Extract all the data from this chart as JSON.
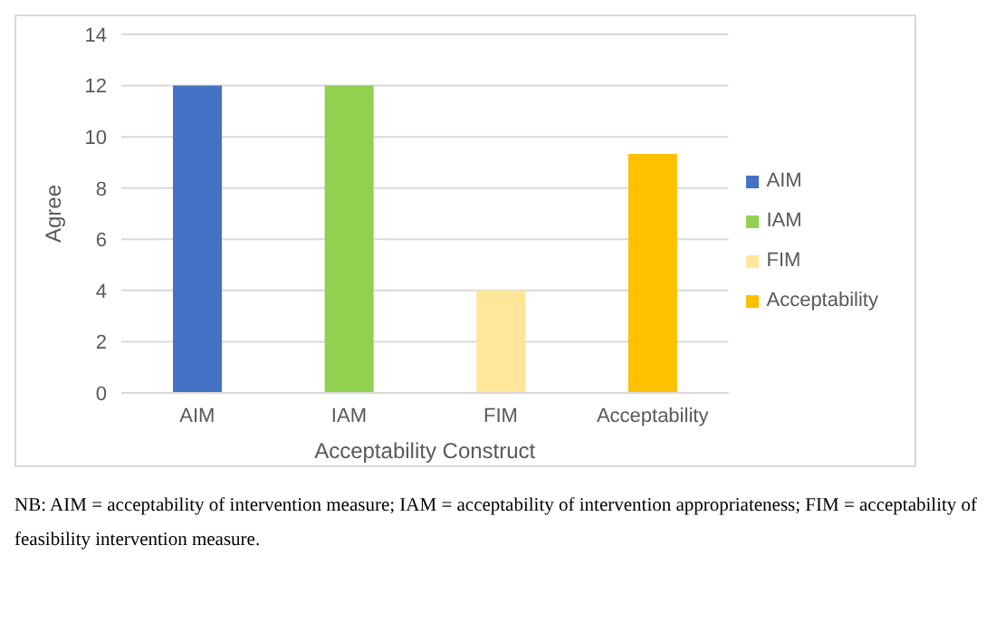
{
  "chart_data": {
    "type": "bar",
    "categories": [
      "AIM",
      "IAM",
      "FIM",
      "Acceptability"
    ],
    "stacked": true,
    "series": [
      {
        "name": "AIM",
        "color": "#4472c4",
        "values": [
          12,
          null,
          null,
          null
        ]
      },
      {
        "name": "IAM",
        "color": "#92d050",
        "values": [
          null,
          12,
          null,
          null
        ]
      },
      {
        "name": "FIM",
        "color": "#ffe699",
        "values": [
          null,
          null,
          4,
          null
        ]
      },
      {
        "name": "Acceptability",
        "color": "#ffc000",
        "values": [
          null,
          null,
          null,
          9.33
        ]
      }
    ],
    "xlabel": "Acceptability Construct",
    "ylabel": "Agree",
    "ylim": [
      0,
      14
    ],
    "yticks": [
      0,
      2,
      4,
      6,
      8,
      10,
      12,
      14
    ],
    "grid": "y",
    "legend": "right",
    "annotations": [
      "NB: AIM = acceptability of intervention measure; IAM = acceptability of intervention appropriateness; FIM = acceptability of feasibility intervention measure."
    ]
  }
}
